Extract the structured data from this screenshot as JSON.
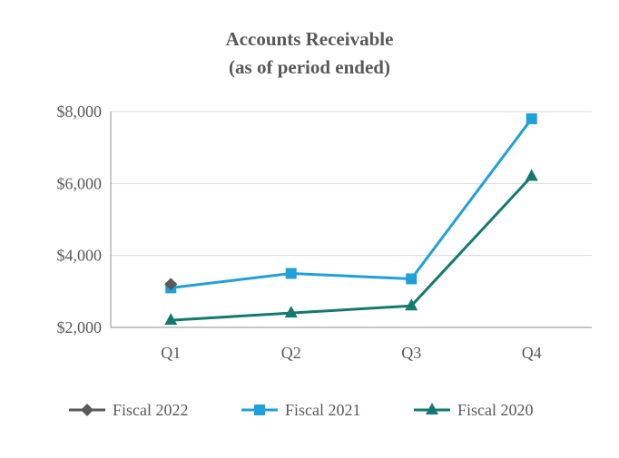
{
  "chart_data": {
    "type": "line",
    "title": "Accounts Receivable",
    "subtitle": "(as of period ended)",
    "xlabel": "",
    "ylabel": "",
    "categories": [
      "Q1",
      "Q2",
      "Q3",
      "Q4"
    ],
    "ylim": [
      2000,
      8000
    ],
    "yticks": [
      2000,
      4000,
      6000,
      8000
    ],
    "ytick_labels": [
      "$2,000",
      "$4,000",
      "$6,000",
      "$8,000"
    ],
    "grid": "horizontal",
    "legend_position": "bottom",
    "series": [
      {
        "name": "Fiscal 2022",
        "values": [
          3200,
          null,
          null,
          null
        ],
        "color": "#595959",
        "marker": "diamond"
      },
      {
        "name": "Fiscal 2021",
        "values": [
          3100,
          3500,
          3350,
          7800
        ],
        "color": "#1FA0D8",
        "marker": "square"
      },
      {
        "name": "Fiscal 2020",
        "values": [
          2200,
          2400,
          2600,
          6200
        ],
        "color": "#147A6E",
        "marker": "triangle"
      }
    ]
  }
}
